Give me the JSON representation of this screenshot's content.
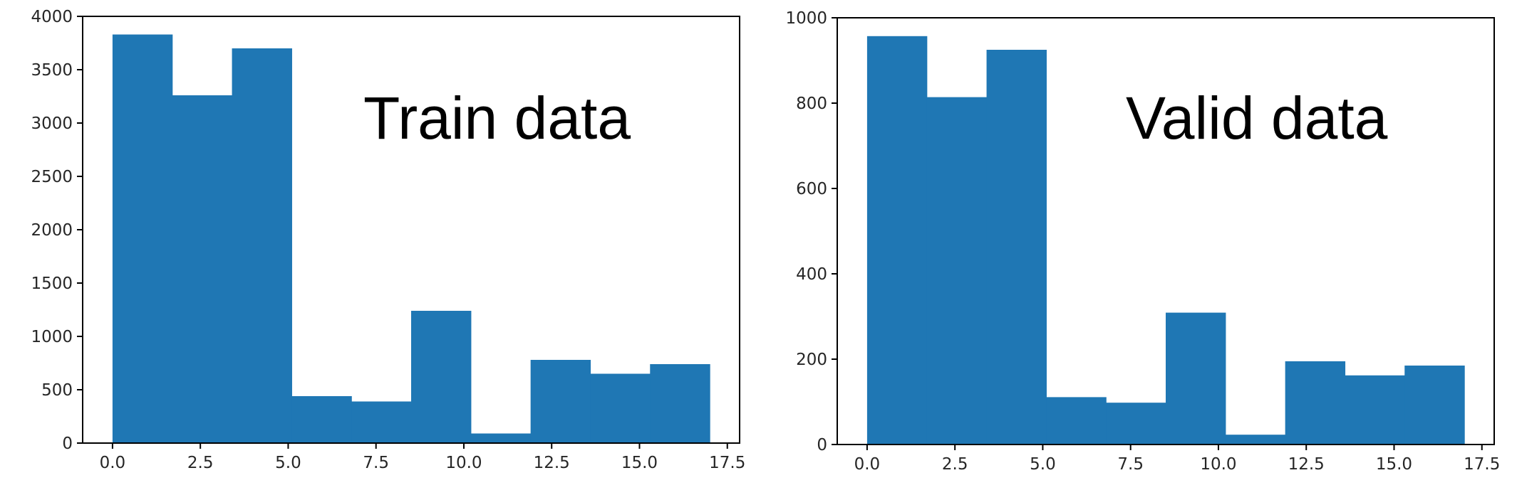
{
  "chart_data": [
    {
      "type": "bar",
      "title": "",
      "annotation": "Train data",
      "xlabel": "",
      "ylabel": "",
      "bin_edges": [
        0,
        1.7,
        3.4,
        5.1,
        6.8,
        8.5,
        10.2,
        11.9,
        13.6,
        15.3,
        17.0
      ],
      "values": [
        3830,
        3260,
        3700,
        440,
        390,
        1240,
        90,
        780,
        650,
        740
      ],
      "xlim": [
        -0.85,
        17.85
      ],
      "ylim": [
        0,
        4000
      ],
      "x_ticks": [
        {
          "value": 0.0,
          "label": "0.0"
        },
        {
          "value": 2.5,
          "label": "2.5"
        },
        {
          "value": 5.0,
          "label": "5.0"
        },
        {
          "value": 7.5,
          "label": "7.5"
        },
        {
          "value": 10.0,
          "label": "10.0"
        },
        {
          "value": 12.5,
          "label": "12.5"
        },
        {
          "value": 15.0,
          "label": "15.0"
        },
        {
          "value": 17.5,
          "label": "17.5"
        }
      ],
      "y_ticks": [
        {
          "value": 0,
          "label": "0"
        },
        {
          "value": 500,
          "label": "500"
        },
        {
          "value": 1000,
          "label": "1000"
        },
        {
          "value": 1500,
          "label": "1500"
        },
        {
          "value": 2000,
          "label": "2000"
        },
        {
          "value": 2500,
          "label": "2500"
        },
        {
          "value": 3000,
          "label": "3000"
        },
        {
          "value": 3500,
          "label": "3500"
        },
        {
          "value": 4000,
          "label": "4000"
        }
      ],
      "grid": false,
      "bar_color": "#1f77b4"
    },
    {
      "type": "bar",
      "title": "",
      "annotation": "Valid data",
      "xlabel": "",
      "ylabel": "",
      "bin_edges": [
        0,
        1.7,
        3.4,
        5.1,
        6.8,
        8.5,
        10.2,
        11.9,
        13.6,
        15.3,
        17.0
      ],
      "values": [
        957,
        814,
        925,
        111,
        98,
        309,
        23,
        195,
        162,
        185
      ],
      "xlim": [
        -0.85,
        17.85
      ],
      "ylim": [
        0,
        1000
      ],
      "x_ticks": [
        {
          "value": 0.0,
          "label": "0.0"
        },
        {
          "value": 2.5,
          "label": "2.5"
        },
        {
          "value": 5.0,
          "label": "5.0"
        },
        {
          "value": 7.5,
          "label": "7.5"
        },
        {
          "value": 10.0,
          "label": "10.0"
        },
        {
          "value": 12.5,
          "label": "12.5"
        },
        {
          "value": 15.0,
          "label": "15.0"
        },
        {
          "value": 17.5,
          "label": "17.5"
        }
      ],
      "y_ticks": [
        {
          "value": 0,
          "label": "0"
        },
        {
          "value": 200,
          "label": "200"
        },
        {
          "value": 400,
          "label": "400"
        },
        {
          "value": 600,
          "label": "600"
        },
        {
          "value": 800,
          "label": "800"
        },
        {
          "value": 1000,
          "label": "1000"
        }
      ],
      "grid": false,
      "bar_color": "#1f77b4"
    }
  ]
}
